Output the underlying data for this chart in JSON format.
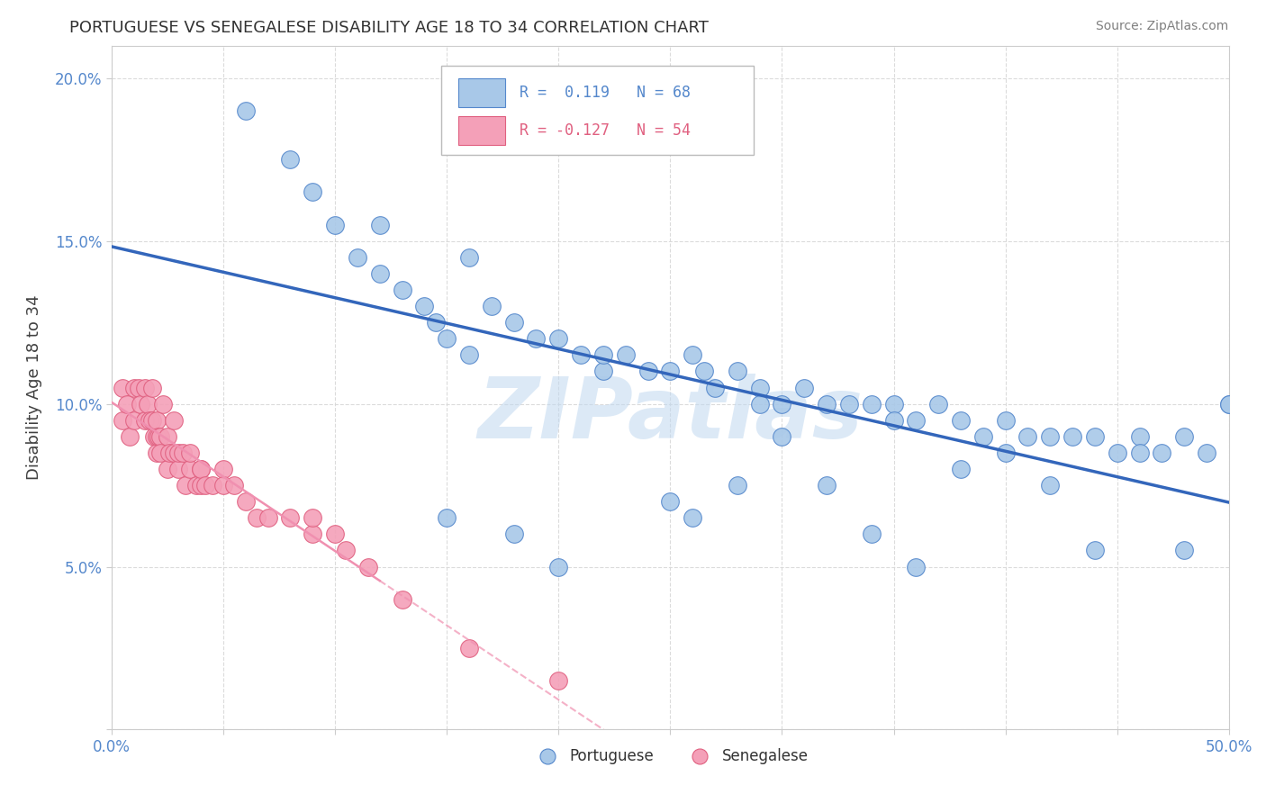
{
  "title": "PORTUGUESE VS SENEGALESE DISABILITY AGE 18 TO 34 CORRELATION CHART",
  "source_text": "Source: ZipAtlas.com",
  "ylabel": "Disability Age 18 to 34",
  "xlim": [
    0.0,
    0.5
  ],
  "ylim": [
    0.0,
    0.21
  ],
  "xticks": [
    0.0,
    0.05,
    0.1,
    0.15,
    0.2,
    0.25,
    0.3,
    0.35,
    0.4,
    0.45,
    0.5
  ],
  "yticks": [
    0.0,
    0.05,
    0.1,
    0.15,
    0.2
  ],
  "portuguese_color": "#a8c8e8",
  "portuguese_edge_color": "#5588cc",
  "senegalese_color": "#f4a0b8",
  "senegalese_edge_color": "#e06080",
  "portuguese_line_color": "#3366bb",
  "senegalese_line_color": "#f090b0",
  "tick_label_color": "#5588cc",
  "ylabel_color": "#404040",
  "title_color": "#333333",
  "source_color": "#808080",
  "grid_color": "#d8d8d8",
  "watermark": "ZIPatlas",
  "watermark_color": "#c0d8f0",
  "legend_r1_text": "R =  0.119   N = 68",
  "legend_r2_text": "R = -0.127   N = 54",
  "legend_r1_color": "#5588cc",
  "legend_r2_color": "#e06080",
  "portuguese_x": [
    0.06,
    0.08,
    0.09,
    0.1,
    0.11,
    0.12,
    0.13,
    0.14,
    0.145,
    0.15,
    0.16,
    0.17,
    0.18,
    0.19,
    0.2,
    0.21,
    0.22,
    0.23,
    0.24,
    0.25,
    0.26,
    0.265,
    0.27,
    0.28,
    0.29,
    0.3,
    0.31,
    0.32,
    0.33,
    0.34,
    0.35,
    0.36,
    0.37,
    0.38,
    0.39,
    0.4,
    0.41,
    0.42,
    0.43,
    0.44,
    0.45,
    0.46,
    0.47,
    0.48,
    0.49,
    0.5,
    0.22,
    0.3,
    0.35,
    0.4,
    0.25,
    0.28,
    0.32,
    0.38,
    0.42,
    0.46,
    0.15,
    0.18,
    0.26,
    0.34,
    0.44,
    0.48,
    0.2,
    0.36,
    0.5,
    0.12,
    0.16,
    0.29
  ],
  "portuguese_y": [
    0.19,
    0.175,
    0.165,
    0.155,
    0.145,
    0.14,
    0.135,
    0.13,
    0.125,
    0.12,
    0.115,
    0.13,
    0.125,
    0.12,
    0.12,
    0.115,
    0.11,
    0.115,
    0.11,
    0.11,
    0.115,
    0.11,
    0.105,
    0.11,
    0.105,
    0.1,
    0.105,
    0.1,
    0.1,
    0.1,
    0.1,
    0.095,
    0.1,
    0.095,
    0.09,
    0.095,
    0.09,
    0.09,
    0.09,
    0.09,
    0.085,
    0.09,
    0.085,
    0.09,
    0.085,
    0.1,
    0.115,
    0.09,
    0.095,
    0.085,
    0.07,
    0.075,
    0.075,
    0.08,
    0.075,
    0.085,
    0.065,
    0.06,
    0.065,
    0.06,
    0.055,
    0.055,
    0.05,
    0.05,
    0.1,
    0.155,
    0.145,
    0.1
  ],
  "senegalese_x": [
    0.005,
    0.005,
    0.007,
    0.008,
    0.01,
    0.01,
    0.012,
    0.013,
    0.015,
    0.015,
    0.016,
    0.017,
    0.018,
    0.018,
    0.019,
    0.02,
    0.02,
    0.02,
    0.021,
    0.022,
    0.022,
    0.023,
    0.025,
    0.025,
    0.026,
    0.028,
    0.028,
    0.03,
    0.03,
    0.032,
    0.033,
    0.035,
    0.035,
    0.038,
    0.04,
    0.04,
    0.04,
    0.042,
    0.045,
    0.05,
    0.05,
    0.055,
    0.06,
    0.065,
    0.07,
    0.08,
    0.09,
    0.09,
    0.1,
    0.105,
    0.115,
    0.13,
    0.16,
    0.2
  ],
  "senegalese_y": [
    0.095,
    0.105,
    0.1,
    0.09,
    0.095,
    0.105,
    0.105,
    0.1,
    0.105,
    0.095,
    0.1,
    0.095,
    0.105,
    0.095,
    0.09,
    0.09,
    0.085,
    0.095,
    0.09,
    0.09,
    0.085,
    0.1,
    0.09,
    0.08,
    0.085,
    0.085,
    0.095,
    0.08,
    0.085,
    0.085,
    0.075,
    0.08,
    0.085,
    0.075,
    0.08,
    0.075,
    0.08,
    0.075,
    0.075,
    0.08,
    0.075,
    0.075,
    0.07,
    0.065,
    0.065,
    0.065,
    0.06,
    0.065,
    0.06,
    0.055,
    0.05,
    0.04,
    0.025,
    0.015
  ]
}
